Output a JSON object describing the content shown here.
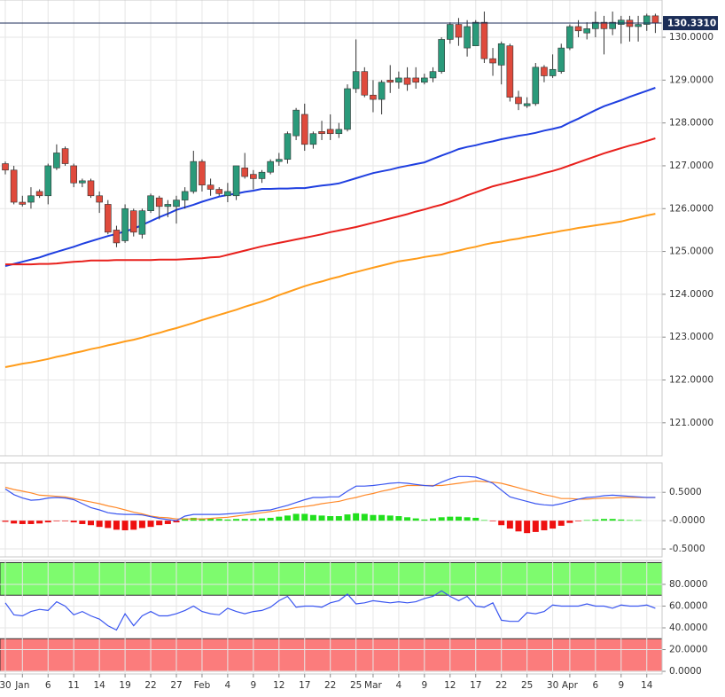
{
  "chart_data": [
    {
      "type": "candlestick",
      "categories": [
        "30",
        null,
        "Jan",
        null,
        null,
        "6",
        null,
        null,
        "11",
        null,
        null,
        "14",
        null,
        null,
        "19",
        null,
        null,
        "22",
        null,
        null,
        "27",
        null,
        null,
        "Feb",
        null,
        null,
        "4",
        null,
        null,
        "9",
        null,
        null,
        "12",
        null,
        null,
        "17",
        null,
        null,
        "22",
        null,
        null,
        "25",
        null,
        "Mar",
        null,
        null,
        "4",
        null,
        null,
        "9",
        null,
        null,
        "12",
        null,
        null,
        "17",
        null,
        null,
        "22",
        null,
        null,
        "25",
        null,
        null,
        "30",
        null,
        "Apr",
        null,
        null,
        "6",
        null,
        null,
        "9",
        null,
        null,
        "14",
        null
      ],
      "open": [
        127.05,
        126.9,
        126.15,
        126.15,
        126.4,
        126.3,
        126.95,
        127.4,
        127.0,
        126.6,
        126.65,
        126.3,
        126.1,
        125.5,
        125.25,
        125.95,
        125.4,
        125.95,
        126.25,
        126.05,
        126.05,
        126.2,
        126.4,
        127.1,
        126.55,
        126.45,
        126.3,
        126.3,
        126.95,
        126.8,
        126.7,
        126.85,
        127.1,
        127.15,
        127.7,
        128.2,
        127.5,
        127.8,
        127.85,
        127.75,
        127.85,
        128.8,
        129.2,
        128.65,
        128.55,
        129.0,
        128.95,
        129.05,
        129.05,
        128.95,
        129.05,
        129.2,
        129.95,
        130.3,
        129.75,
        129.8,
        130.35,
        129.5,
        129.35,
        129.8,
        128.6,
        128.4,
        128.45,
        129.3,
        129.1,
        129.2,
        129.75,
        130.25,
        130.1,
        130.2,
        130.35,
        130.2,
        130.3,
        130.4,
        130.25,
        130.3,
        130.5
      ],
      "high": [
        127.1,
        127.0,
        126.3,
        126.5,
        126.45,
        127.05,
        127.5,
        127.45,
        127.05,
        126.7,
        126.7,
        126.4,
        126.2,
        125.6,
        126.1,
        126.0,
        126.0,
        126.35,
        126.3,
        126.2,
        126.3,
        126.5,
        127.35,
        127.15,
        126.7,
        126.5,
        126.6,
        127.0,
        127.3,
        126.9,
        126.9,
        127.15,
        127.3,
        127.8,
        128.35,
        128.45,
        127.8,
        128.05,
        128.2,
        128.0,
        128.9,
        129.95,
        129.3,
        129.0,
        129.0,
        129.35,
        129.2,
        129.3,
        129.3,
        129.15,
        129.3,
        130.0,
        130.35,
        130.45,
        130.4,
        130.4,
        130.6,
        129.75,
        129.9,
        129.85,
        128.75,
        128.6,
        129.4,
        129.35,
        129.6,
        129.85,
        130.3,
        130.4,
        130.35,
        130.6,
        130.5,
        130.6,
        130.5,
        130.5,
        130.5,
        130.55,
        130.55
      ],
      "low": [
        126.8,
        126.1,
        126.05,
        126.0,
        126.25,
        126.1,
        126.9,
        127.0,
        126.5,
        126.5,
        126.25,
        125.9,
        125.4,
        125.1,
        125.2,
        125.35,
        125.3,
        125.9,
        125.75,
        125.8,
        125.65,
        126.0,
        126.35,
        126.4,
        126.3,
        126.3,
        126.15,
        126.2,
        126.7,
        126.45,
        126.6,
        126.8,
        127.0,
        127.05,
        127.6,
        127.35,
        127.4,
        127.6,
        127.6,
        127.65,
        127.8,
        128.7,
        128.6,
        128.25,
        128.2,
        128.7,
        128.8,
        128.75,
        128.8,
        128.9,
        128.95,
        129.15,
        129.85,
        129.8,
        129.55,
        129.8,
        129.4,
        129.1,
        128.9,
        128.5,
        128.3,
        128.35,
        128.4,
        128.95,
        129.05,
        129.15,
        129.7,
        130.0,
        129.95,
        130.0,
        129.6,
        130.05,
        129.85,
        129.9,
        129.9,
        130.15,
        130.1
      ],
      "close": [
        126.9,
        126.15,
        126.1,
        126.3,
        126.3,
        127.0,
        127.3,
        127.05,
        126.6,
        126.65,
        126.3,
        126.15,
        125.45,
        125.2,
        126.0,
        125.45,
        125.95,
        126.3,
        126.05,
        126.1,
        126.2,
        126.4,
        127.1,
        126.55,
        126.45,
        126.35,
        126.4,
        127.0,
        126.75,
        126.7,
        126.85,
        127.1,
        127.15,
        127.75,
        128.3,
        127.5,
        127.75,
        127.75,
        127.75,
        127.85,
        128.8,
        129.2,
        128.65,
        128.55,
        128.95,
        128.95,
        129.05,
        128.9,
        128.95,
        129.05,
        129.2,
        129.95,
        130.3,
        130.0,
        130.25,
        130.35,
        129.5,
        129.4,
        129.85,
        128.6,
        128.45,
        128.45,
        129.3,
        129.1,
        129.25,
        129.75,
        130.25,
        130.15,
        130.2,
        130.35,
        130.2,
        130.35,
        130.4,
        130.25,
        130.3,
        130.5,
        130.33
      ],
      "up_color": "#2a9a7a",
      "down_color": "#df4a3c",
      "overlays": [
        {
          "color": "#1f3fe0",
          "values": [
            124.66,
            124.71,
            124.76,
            124.81,
            124.86,
            124.93,
            124.99,
            125.05,
            125.11,
            125.18,
            125.24,
            125.3,
            125.36,
            125.41,
            125.47,
            125.53,
            125.62,
            125.71,
            125.8,
            125.88,
            125.97,
            126.03,
            126.09,
            126.16,
            126.22,
            126.28,
            126.32,
            126.35,
            126.39,
            126.42,
            126.46,
            126.46,
            126.47,
            126.47,
            126.48,
            126.48,
            126.51,
            126.54,
            126.56,
            126.59,
            126.65,
            126.71,
            126.77,
            126.83,
            126.87,
            126.91,
            126.96,
            127.0,
            127.04,
            127.08,
            127.16,
            127.24,
            127.31,
            127.39,
            127.44,
            127.48,
            127.53,
            127.57,
            127.62,
            127.66,
            127.7,
            127.73,
            127.77,
            127.82,
            127.86,
            127.91,
            128.01,
            128.1,
            128.2,
            128.3,
            128.39,
            128.46,
            128.53,
            128.61,
            128.68,
            128.75,
            128.82
          ]
        },
        {
          "color": "#e8201c",
          "values": [
            124.7,
            124.7,
            124.7,
            124.7,
            124.71,
            124.71,
            124.72,
            124.74,
            124.76,
            124.77,
            124.79,
            124.79,
            124.79,
            124.8,
            124.8,
            124.8,
            124.8,
            124.8,
            124.81,
            124.81,
            124.81,
            124.82,
            124.83,
            124.84,
            124.86,
            124.87,
            124.92,
            124.97,
            125.02,
            125.07,
            125.12,
            125.16,
            125.2,
            125.24,
            125.28,
            125.32,
            125.36,
            125.4,
            125.45,
            125.49,
            125.53,
            125.57,
            125.62,
            125.67,
            125.72,
            125.77,
            125.82,
            125.87,
            125.93,
            125.98,
            126.04,
            126.09,
            126.16,
            126.23,
            126.31,
            126.38,
            126.45,
            126.52,
            126.57,
            126.62,
            126.67,
            126.72,
            126.77,
            126.83,
            126.88,
            126.94,
            127.01,
            127.08,
            127.15,
            127.22,
            127.29,
            127.35,
            127.41,
            127.47,
            127.52,
            127.58,
            127.64
          ]
        },
        {
          "color": "#ff9c1a",
          "values": [
            122.3,
            122.34,
            122.38,
            122.41,
            122.45,
            122.49,
            122.54,
            122.58,
            122.63,
            122.67,
            122.72,
            122.76,
            122.81,
            122.85,
            122.9,
            122.94,
            122.99,
            123.05,
            123.1,
            123.16,
            123.21,
            123.27,
            123.33,
            123.4,
            123.46,
            123.52,
            123.58,
            123.64,
            123.71,
            123.77,
            123.83,
            123.9,
            123.98,
            124.05,
            124.12,
            124.19,
            124.25,
            124.3,
            124.36,
            124.41,
            124.47,
            124.52,
            124.57,
            124.62,
            124.67,
            124.72,
            124.77,
            124.8,
            124.83,
            124.87,
            124.9,
            124.93,
            124.98,
            125.02,
            125.07,
            125.11,
            125.16,
            125.2,
            125.23,
            125.27,
            125.3,
            125.34,
            125.37,
            125.41,
            125.44,
            125.48,
            125.51,
            125.55,
            125.58,
            125.61,
            125.64,
            125.67,
            125.7,
            125.75,
            125.79,
            125.84,
            125.88
          ]
        }
      ],
      "ylim": [
        120.23,
        130.87
      ],
      "yticks": [
        {
          "value": 121,
          "label": "121.0000"
        },
        {
          "value": 122,
          "label": "122.0000"
        },
        {
          "value": 123,
          "label": "123.0000"
        },
        {
          "value": 124,
          "label": "124.0000"
        },
        {
          "value": 125,
          "label": "125.0000"
        },
        {
          "value": 126,
          "label": "126.0000"
        },
        {
          "value": 127,
          "label": "127.0000"
        },
        {
          "value": 128,
          "label": "128.0000"
        },
        {
          "value": 129,
          "label": "129.0000"
        },
        {
          "value": 130,
          "label": "130.0000"
        }
      ],
      "last_price": {
        "value": 130.331,
        "label": "130.3310"
      },
      "last_price_color": "#1c2e58",
      "grid": true
    },
    {
      "type": "macd",
      "histogram": [
        -0.02,
        -0.05,
        -0.06,
        -0.06,
        -0.05,
        -0.03,
        -0.01,
        -0.01,
        -0.03,
        -0.06,
        -0.08,
        -0.11,
        -0.13,
        -0.16,
        -0.17,
        -0.16,
        -0.13,
        -0.11,
        -0.08,
        -0.06,
        -0.03,
        0.04,
        0.05,
        0.04,
        0.04,
        0.03,
        0.02,
        0.03,
        0.03,
        0.03,
        0.04,
        0.05,
        0.07,
        0.09,
        0.12,
        0.12,
        0.1,
        0.09,
        0.08,
        0.08,
        0.11,
        0.13,
        0.12,
        0.1,
        0.1,
        0.09,
        0.08,
        0.06,
        0.04,
        0.02,
        0.04,
        0.06,
        0.07,
        0.07,
        0.06,
        0.05,
        0.01,
        -0.01,
        -0.08,
        -0.14,
        -0.19,
        -0.22,
        -0.2,
        -0.17,
        -0.14,
        -0.09,
        -0.04,
        -0.01,
        0.01,
        0.02,
        0.03,
        0.03,
        0.02,
        0.01,
        0.01,
        0.0,
        0.0
      ],
      "macd": [
        0.56,
        0.46,
        0.4,
        0.36,
        0.37,
        0.4,
        0.41,
        0.4,
        0.37,
        0.3,
        0.23,
        0.19,
        0.14,
        0.12,
        0.11,
        0.11,
        0.1,
        0.07,
        0.04,
        0.02,
        0.0,
        0.08,
        0.11,
        0.11,
        0.11,
        0.11,
        0.12,
        0.13,
        0.14,
        0.16,
        0.18,
        0.19,
        0.23,
        0.27,
        0.32,
        0.37,
        0.41,
        0.41,
        0.42,
        0.42,
        0.52,
        0.61,
        0.61,
        0.62,
        0.64,
        0.66,
        0.67,
        0.66,
        0.64,
        0.62,
        0.61,
        0.68,
        0.74,
        0.78,
        0.78,
        0.77,
        0.72,
        0.66,
        0.54,
        0.42,
        0.38,
        0.34,
        0.3,
        0.28,
        0.27,
        0.3,
        0.34,
        0.38,
        0.41,
        0.42,
        0.44,
        0.45,
        0.44,
        0.43,
        0.42,
        0.41,
        0.41
      ],
      "signal": [
        0.59,
        0.55,
        0.52,
        0.49,
        0.45,
        0.44,
        0.43,
        0.42,
        0.39,
        0.36,
        0.33,
        0.3,
        0.26,
        0.23,
        0.19,
        0.15,
        0.12,
        0.08,
        0.06,
        0.05,
        0.03,
        0.03,
        0.03,
        0.03,
        0.04,
        0.05,
        0.06,
        0.08,
        0.1,
        0.12,
        0.14,
        0.16,
        0.18,
        0.2,
        0.23,
        0.25,
        0.27,
        0.3,
        0.32,
        0.34,
        0.38,
        0.41,
        0.45,
        0.48,
        0.52,
        0.55,
        0.59,
        0.62,
        0.62,
        0.62,
        0.62,
        0.62,
        0.64,
        0.66,
        0.68,
        0.7,
        0.69,
        0.68,
        0.66,
        0.62,
        0.58,
        0.54,
        0.5,
        0.46,
        0.43,
        0.39,
        0.39,
        0.38,
        0.38,
        0.39,
        0.4,
        0.4,
        0.41,
        0.41,
        0.41,
        0.41,
        0.41
      ],
      "up_color": "#22e01e",
      "down_color": "#ee1010",
      "macd_color": "#3a56f0",
      "signal_color": "#ff8a2a",
      "ylim": [
        -0.64,
        1.02
      ],
      "yticks": [
        {
          "value": 0.5,
          "label": "0.5000"
        },
        {
          "value": 0,
          "label": "-0.0000"
        },
        {
          "value": -0.5,
          "label": "-0.5000"
        }
      ],
      "grid": true
    },
    {
      "type": "rsi",
      "values": [
        63,
        52,
        51,
        55,
        57,
        56,
        64,
        60,
        52,
        55,
        51,
        48,
        42,
        38,
        53,
        42,
        51,
        55,
        51,
        51,
        53,
        56,
        60,
        55,
        53,
        52,
        58,
        55,
        53,
        55,
        56,
        59,
        65,
        69,
        59,
        60,
        60,
        59,
        63,
        65,
        71,
        62,
        63,
        65,
        64,
        63,
        64,
        63,
        64,
        67,
        69,
        74,
        69,
        65,
        69,
        60,
        59,
        63,
        47,
        46,
        46,
        54,
        53,
        55,
        61,
        60,
        60,
        60,
        62,
        60,
        60,
        58,
        61,
        60,
        60,
        61,
        58
      ],
      "color": "#3a56f0",
      "bands": [
        {
          "from": 70,
          "to": 100,
          "color": "#7efb6e"
        },
        {
          "from": 0,
          "to": 30,
          "color": "#fb7c7c"
        }
      ],
      "ylim": [
        -2.4,
        102
      ],
      "yticks": [
        {
          "value": 80,
          "label": "80.0000"
        },
        {
          "value": 60,
          "label": "60.0000"
        },
        {
          "value": 40,
          "label": "40.0000"
        },
        {
          "value": 20,
          "label": "20.0000"
        },
        {
          "value": 0,
          "label": "0.0000"
        }
      ],
      "grid": true
    }
  ]
}
